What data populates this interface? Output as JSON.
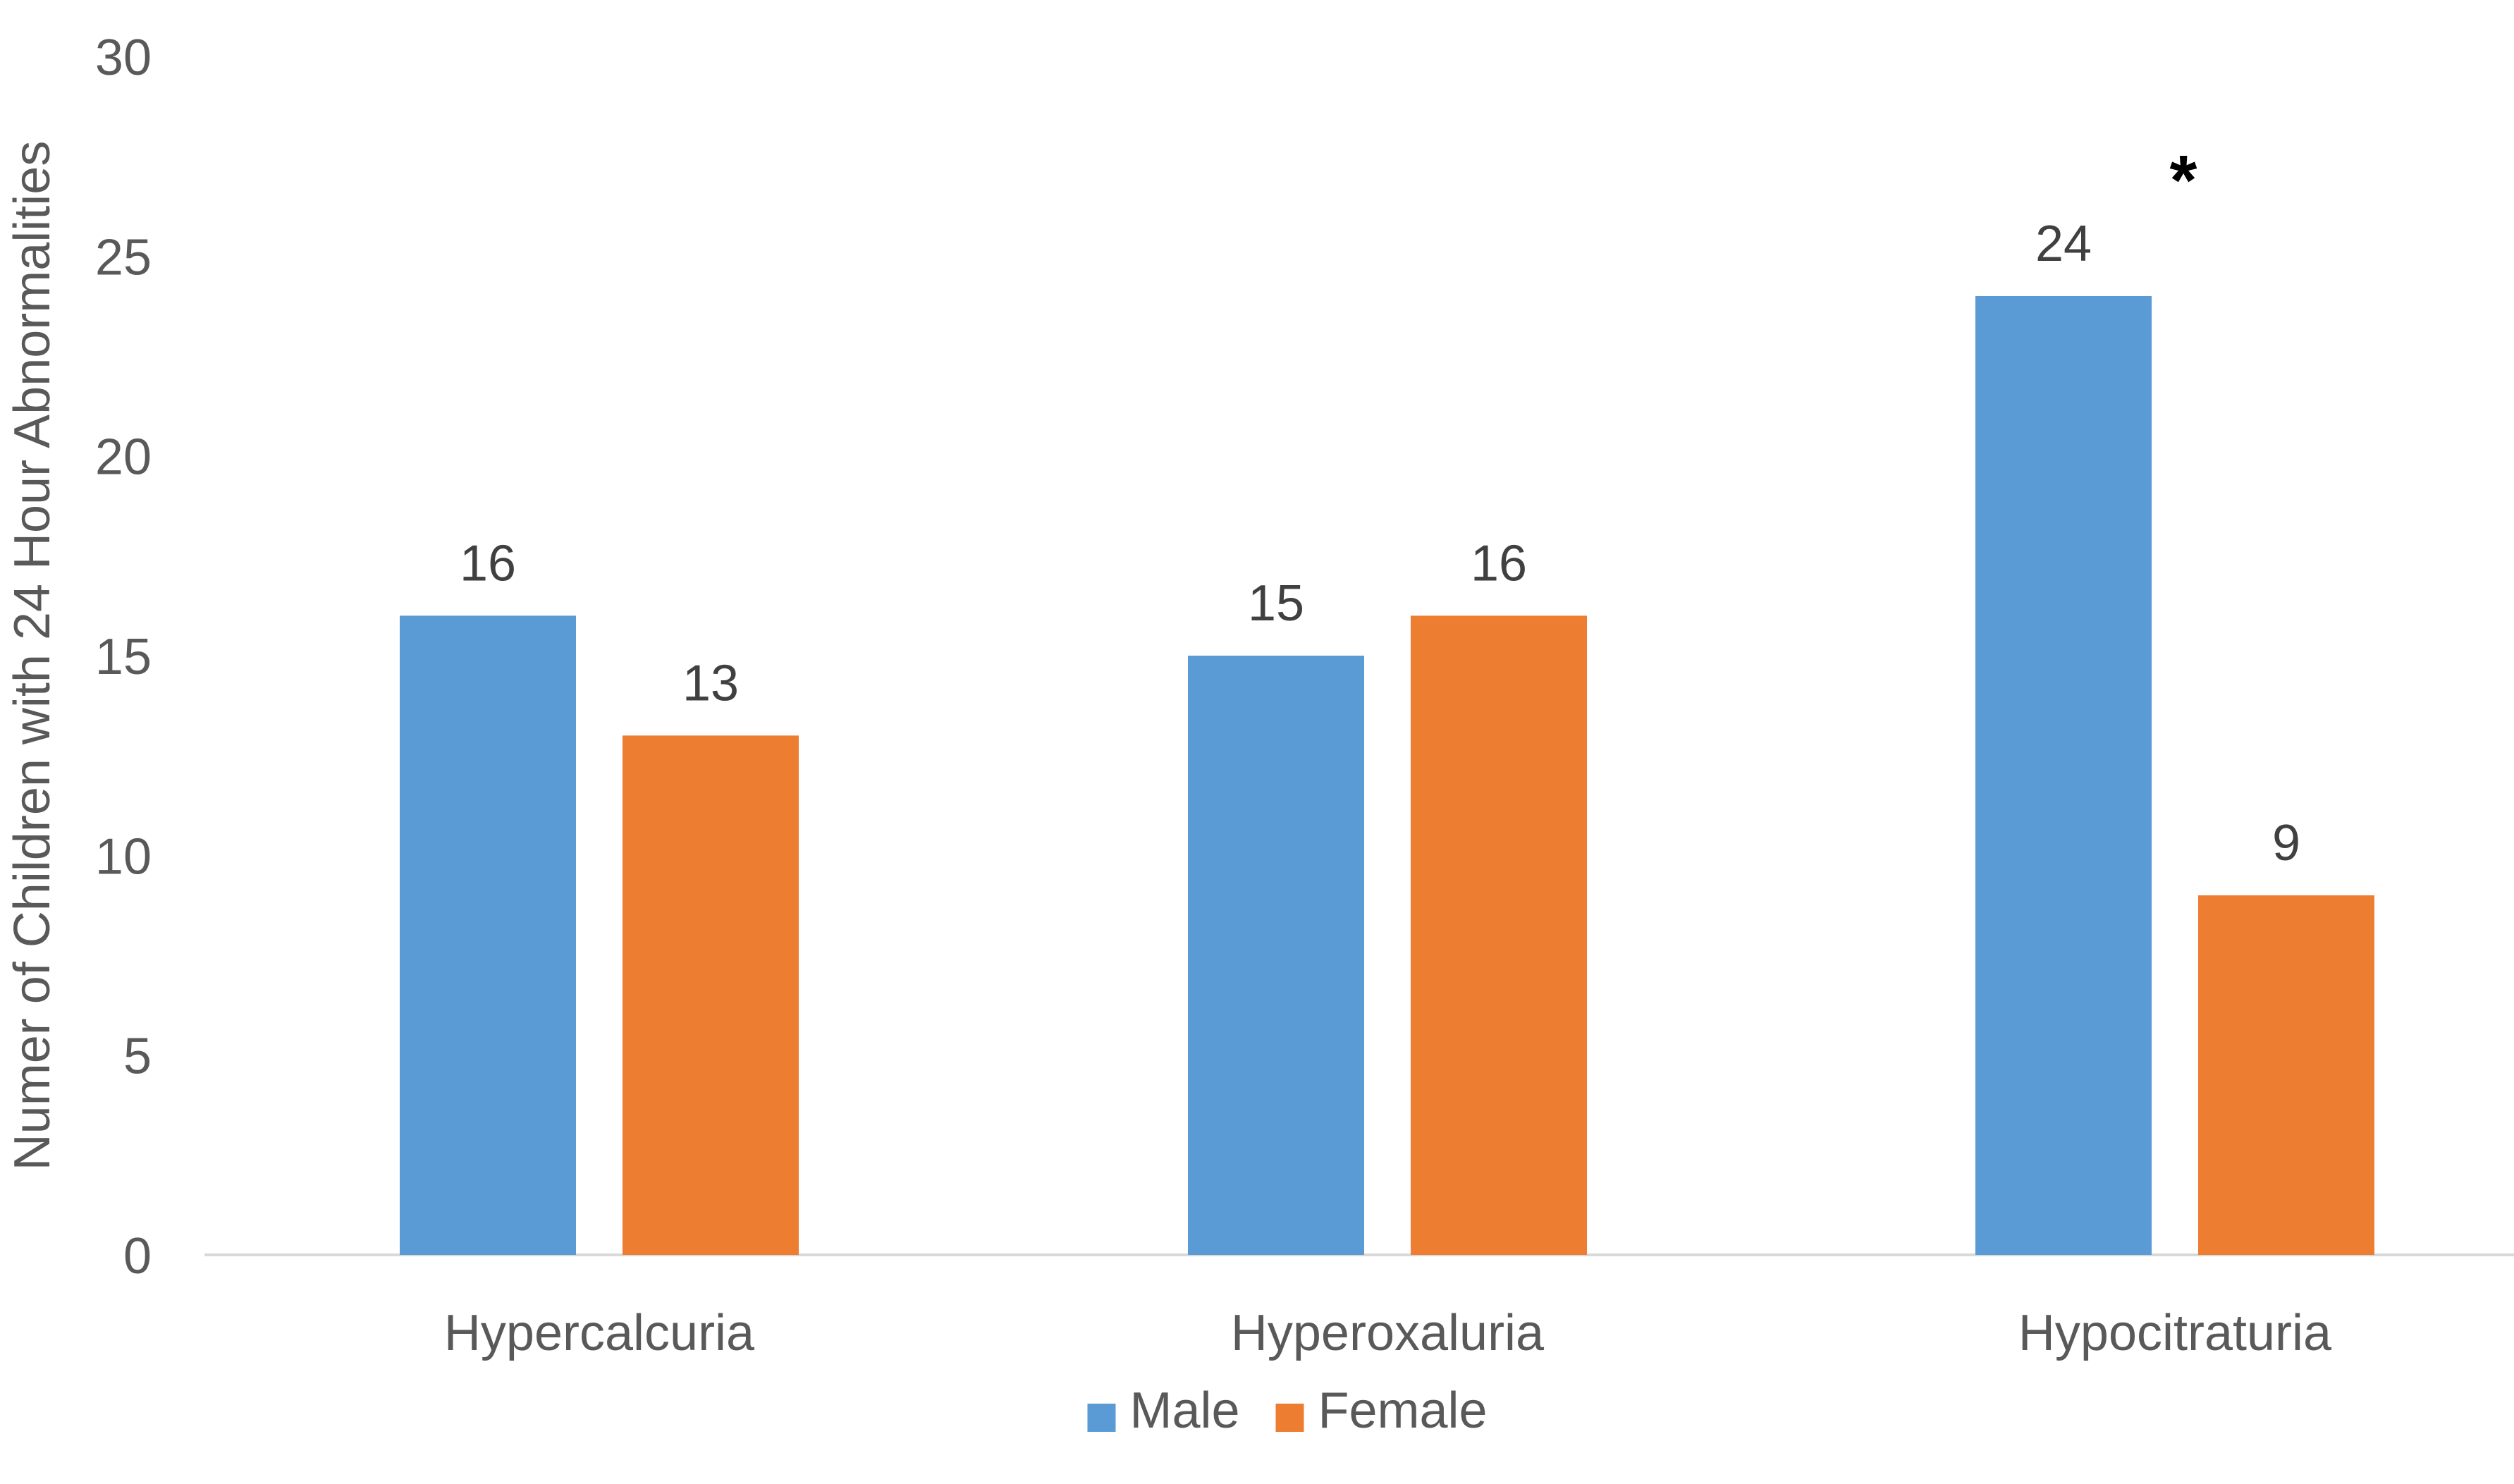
{
  "chart_data": {
    "type": "bar",
    "title": "",
    "xlabel": "",
    "ylabel": "Numer of Children with 24 Hour Abnormalities",
    "categories": [
      "Hypercalcuria",
      "Hyperoxaluria",
      "Hypocitraturia"
    ],
    "series": [
      {
        "name": "Male",
        "values": [
          16,
          15,
          24
        ],
        "color": "#5B9BD5"
      },
      {
        "name": "Female",
        "values": [
          13,
          16,
          9
        ],
        "color": "#ED7D31"
      }
    ],
    "ylim": [
      0,
      30
    ],
    "yticks": [
      0,
      5,
      10,
      15,
      20,
      25,
      30
    ],
    "data_labels": true,
    "grid": false,
    "legend": "bottom",
    "annotations": [
      {
        "text": "*",
        "category": "Hypocitraturia"
      }
    ]
  }
}
